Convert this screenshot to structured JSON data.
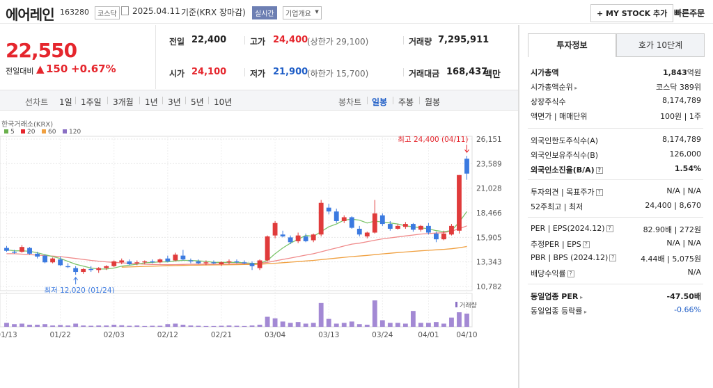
{
  "header": {
    "name": "에어레인",
    "code": "163280",
    "market": "코스닥",
    "date": "2025.04.11",
    "basis": "기준(KRX 장마감)",
    "realtime": "실시간",
    "company_overview": "기업개요",
    "my_stock": "MY STOCK 추가",
    "quick_order": "빠른주문"
  },
  "price": {
    "current": "22,550",
    "change_label": "전일대비",
    "change": "150",
    "change_pct": "+0.67%"
  },
  "quote": {
    "prev_label": "전일",
    "prev": "22,400",
    "high_label": "고가",
    "high": "24,400",
    "upper_limit": "(상한가 29,100)",
    "volume_label": "거래량",
    "volume": "7,295,911",
    "open_label": "시가",
    "open": "24,100",
    "low_label": "저가",
    "low": "21,900",
    "lower_limit": "(하한가 15,700)",
    "amount_label": "거래대금",
    "amount": "168,437",
    "amount_unit": "백만"
  },
  "periods": {
    "line_label": "선차트",
    "items": [
      "1일",
      "1주일",
      "3개월",
      "1년",
      "3년",
      "5년",
      "10년"
    ],
    "candle_label": "봉차트",
    "candle_items": [
      "일봉",
      "주봉",
      "월봉"
    ]
  },
  "chart_data": {
    "type": "candlestick",
    "source_label": "한국거래소(KRX)",
    "ma_legend": [
      {
        "name": "5",
        "color": "#6ab04c"
      },
      {
        "name": "20",
        "color": "#e5262d"
      },
      {
        "name": "60",
        "color": "#f0a040"
      },
      {
        "name": "120",
        "color": "#8a6fc4"
      }
    ],
    "y_ticks": [
      "26,151",
      "23,589",
      "21,028",
      "18,466",
      "15,905",
      "13,343",
      "10,782"
    ],
    "y_values": [
      26151,
      23589,
      21028,
      18466,
      15905,
      13343,
      10782
    ],
    "x_ticks": [
      "01/13",
      "01/22",
      "02/03",
      "02/12",
      "02/21",
      "03/04",
      "03/13",
      "03/24",
      "04/01",
      "04/10"
    ],
    "high_annotation": "최고 24,400 (04/11)",
    "low_annotation": "최저 12,020 (01/24)",
    "volume_label": "거래량",
    "candles": [
      [
        14800,
        15000,
        14400,
        14500
      ],
      [
        14400,
        14600,
        14200,
        14300
      ],
      [
        14400,
        15100,
        14300,
        14900
      ],
      [
        14800,
        14900,
        14100,
        14200
      ],
      [
        14200,
        14400,
        13700,
        13900
      ],
      [
        14000,
        14100,
        13200,
        13300
      ],
      [
        13300,
        13800,
        13200,
        13700
      ],
      [
        13600,
        13900,
        12900,
        13000
      ],
      [
        12900,
        13200,
        12700,
        12800
      ],
      [
        12700,
        12900,
        12000,
        12300
      ],
      [
        12300,
        12700,
        12100,
        12600
      ],
      [
        12600,
        12900,
        12300,
        12500
      ],
      [
        12500,
        12800,
        12200,
        12700
      ],
      [
        12700,
        13000,
        12500,
        12900
      ],
      [
        12900,
        13500,
        12800,
        13400
      ],
      [
        13300,
        13700,
        13100,
        13500
      ],
      [
        13400,
        13600,
        13000,
        13100
      ],
      [
        13200,
        13500,
        13000,
        13300
      ],
      [
        13300,
        13500,
        13100,
        13400
      ],
      [
        13400,
        13600,
        13200,
        13300
      ],
      [
        13300,
        13700,
        13200,
        13600
      ],
      [
        13700,
        14000,
        13300,
        13400
      ],
      [
        13500,
        14300,
        13400,
        14100
      ],
      [
        14000,
        14600,
        13500,
        13600
      ],
      [
        13500,
        13700,
        13200,
        13400
      ],
      [
        13400,
        13600,
        13100,
        13200
      ],
      [
        13200,
        13500,
        13000,
        13300
      ],
      [
        13300,
        13500,
        13100,
        13200
      ],
      [
        13100,
        13400,
        12900,
        13300
      ],
      [
        13300,
        13600,
        13100,
        13400
      ],
      [
        13400,
        13600,
        13200,
        13300
      ],
      [
        13300,
        13500,
        13100,
        13200
      ],
      [
        13200,
        13400,
        12500,
        12900
      ],
      [
        12700,
        13600,
        12500,
        13500
      ],
      [
        13500,
        16100,
        13400,
        16000
      ],
      [
        16100,
        17600,
        15800,
        17400
      ],
      [
        16200,
        16600,
        15900,
        16000
      ],
      [
        15900,
        16100,
        15200,
        15400
      ],
      [
        15500,
        16400,
        15300,
        16100
      ],
      [
        16000,
        16300,
        15400,
        15500
      ],
      [
        15600,
        16300,
        15400,
        16200
      ],
      [
        16200,
        19800,
        16000,
        19500
      ],
      [
        19000,
        19400,
        18300,
        18600
      ],
      [
        18600,
        18900,
        17400,
        17600
      ],
      [
        17600,
        18200,
        17400,
        18000
      ],
      [
        18000,
        18100,
        16800,
        16900
      ],
      [
        16800,
        17100,
        16000,
        16200
      ],
      [
        16000,
        16500,
        15800,
        16400
      ],
      [
        16400,
        19800,
        16300,
        18400
      ],
      [
        18200,
        18400,
        17100,
        17300
      ],
      [
        17300,
        17600,
        16600,
        16800
      ],
      [
        16800,
        17300,
        16700,
        17100
      ],
      [
        17000,
        17500,
        16800,
        17300
      ],
      [
        17300,
        17400,
        16500,
        16700
      ],
      [
        16700,
        17200,
        16500,
        17100
      ],
      [
        17100,
        17400,
        16200,
        16400
      ],
      [
        16300,
        16500,
        15400,
        15700
      ],
      [
        15700,
        16600,
        15600,
        16300
      ],
      [
        16200,
        17300,
        16100,
        17100
      ],
      [
        16600,
        22400,
        16300,
        22400
      ],
      [
        24100,
        24400,
        21900,
        22550
      ]
    ],
    "volume_relative": [
      0.15,
      0.1,
      0.12,
      0.08,
      0.08,
      0.1,
      0.05,
      0.07,
      0.05,
      0.12,
      0.05,
      0.04,
      0.05,
      0.05,
      0.08,
      0.06,
      0.04,
      0.05,
      0.03,
      0.04,
      0.04,
      0.1,
      0.12,
      0.08,
      0.05,
      0.04,
      0.03,
      0.03,
      0.04,
      0.05,
      0.04,
      0.03,
      0.05,
      0.08,
      0.38,
      0.32,
      0.2,
      0.15,
      0.18,
      0.12,
      0.15,
      0.9,
      0.3,
      0.12,
      0.15,
      0.2,
      0.1,
      0.08,
      1.0,
      0.25,
      0.15,
      0.15,
      0.12,
      0.6,
      0.15,
      0.15,
      0.18,
      0.12,
      0.35,
      0.55,
      0.5
    ],
    "volume_up": [
      0,
      0,
      1,
      0,
      0,
      0,
      1,
      0,
      0,
      0,
      1,
      0,
      1,
      1,
      1,
      1,
      0,
      1,
      1,
      0,
      1,
      0,
      1,
      0,
      0,
      0,
      1,
      0,
      1,
      1,
      0,
      0,
      0,
      1,
      1,
      1,
      0,
      0,
      1,
      0,
      1,
      1,
      0,
      0,
      1,
      0,
      0,
      1,
      1,
      0,
      0,
      1,
      1,
      0,
      1,
      0,
      0,
      1,
      1,
      1,
      0
    ],
    "ma5": [
      14600,
      14500,
      14500,
      14450,
      14300,
      14100,
      13900,
      13700,
      13400,
      13100,
      12900,
      12700,
      12600,
      12600,
      12700,
      12900,
      13000,
      13100,
      13250,
      13300,
      13350,
      13350,
      13450,
      13500,
      13500,
      13450,
      13400,
      13300,
      13300,
      13300,
      13300,
      13250,
      13200,
      13200,
      13500,
      14200,
      14800,
      15300,
      15700,
      16100,
      16000,
      16500,
      17000,
      17300,
      17700,
      17800,
      17700,
      17400,
      17600,
      17500,
      17400,
      17300,
      17100,
      17000,
      16900,
      16800,
      16600,
      16500,
      16600,
      17500,
      18600
    ],
    "ma20": [
      14200,
      14200,
      14150,
      14100,
      14050,
      14000,
      13950,
      13900,
      13800,
      13700,
      13600,
      13500,
      13420,
      13350,
      13300,
      13250,
      13200,
      13150,
      13100,
      13080,
      13060,
      13050,
      13060,
      13080,
      13100,
      13100,
      13100,
      13110,
      13120,
      13130,
      13150,
      13160,
      13170,
      13200,
      13300,
      13450,
      13600,
      13750,
      13900,
      14050,
      14200,
      14400,
      14600,
      14800,
      15000,
      15200,
      15300,
      15450,
      15600,
      15750,
      15850,
      15950,
      16050,
      16150,
      16250,
      16300,
      16350,
      16400,
      16550,
      16800,
      17100
    ],
    "ma60": [
      null,
      null,
      null,
      null,
      null,
      null,
      null,
      null,
      null,
      null,
      null,
      null,
      null,
      null,
      null,
      12800,
      12820,
      12850,
      12880,
      12900,
      12920,
      12940,
      12960,
      12980,
      13000,
      13010,
      13020,
      13030,
      13040,
      13050,
      13060,
      13070,
      13080,
      13100,
      13150,
      13200,
      13260,
      13320,
      13380,
      13440,
      13500,
      13580,
      13660,
      13740,
      13820,
      13900,
      13960,
      14020,
      14100,
      14180,
      14250,
      14320,
      14380,
      14440,
      14500,
      14550,
      14600,
      14650,
      14720,
      14820,
      14950
    ]
  },
  "right": {
    "tab_invest": "투자정보",
    "tab_quote": "호가 10단계",
    "rows1": [
      {
        "l": "시가총액",
        "r": "1,843",
        "u": "억원",
        "bold": true
      },
      {
        "l": "시가총액순위",
        "r": "코스닥 389위",
        "arrow": true
      },
      {
        "l": "상장주식수",
        "r": "8,174,789"
      },
      {
        "l": "액면가 | 매매단위",
        "r": "100원 | 1주"
      }
    ],
    "rows2": [
      {
        "l": "외국인한도주식수(A)",
        "r": "8,174,789"
      },
      {
        "l": "외국인보유주식수(B)",
        "r": "126,000"
      },
      {
        "l": "외국인소진율(B/A)",
        "r": "1.54%",
        "bold": true,
        "q": true
      }
    ],
    "rows3": [
      {
        "l": "투자의견 | 목표주가",
        "r": "N/A | N/A",
        "q": true
      },
      {
        "l": "52주최고 | 최저",
        "r": "24,400 | 8,670"
      }
    ],
    "rows4": [
      {
        "l": "PER | EPS(2024.12)",
        "r": "82.90배 | 272원",
        "q": true
      },
      {
        "l": "추정PER | EPS",
        "r": "N/A | N/A",
        "q": true
      },
      {
        "l": "PBR | BPS (2024.12)",
        "r": "4.44배 | 5,075원",
        "q": true
      },
      {
        "l": "배당수익률",
        "r": "N/A",
        "q": true
      }
    ],
    "rows5": [
      {
        "l": "동일업종 PER",
        "r": "-47.50배",
        "bold": true,
        "arrow": true
      },
      {
        "l": "동일업종 등락률",
        "r": "-0.66%",
        "blue": true,
        "arrow": true
      }
    ]
  }
}
